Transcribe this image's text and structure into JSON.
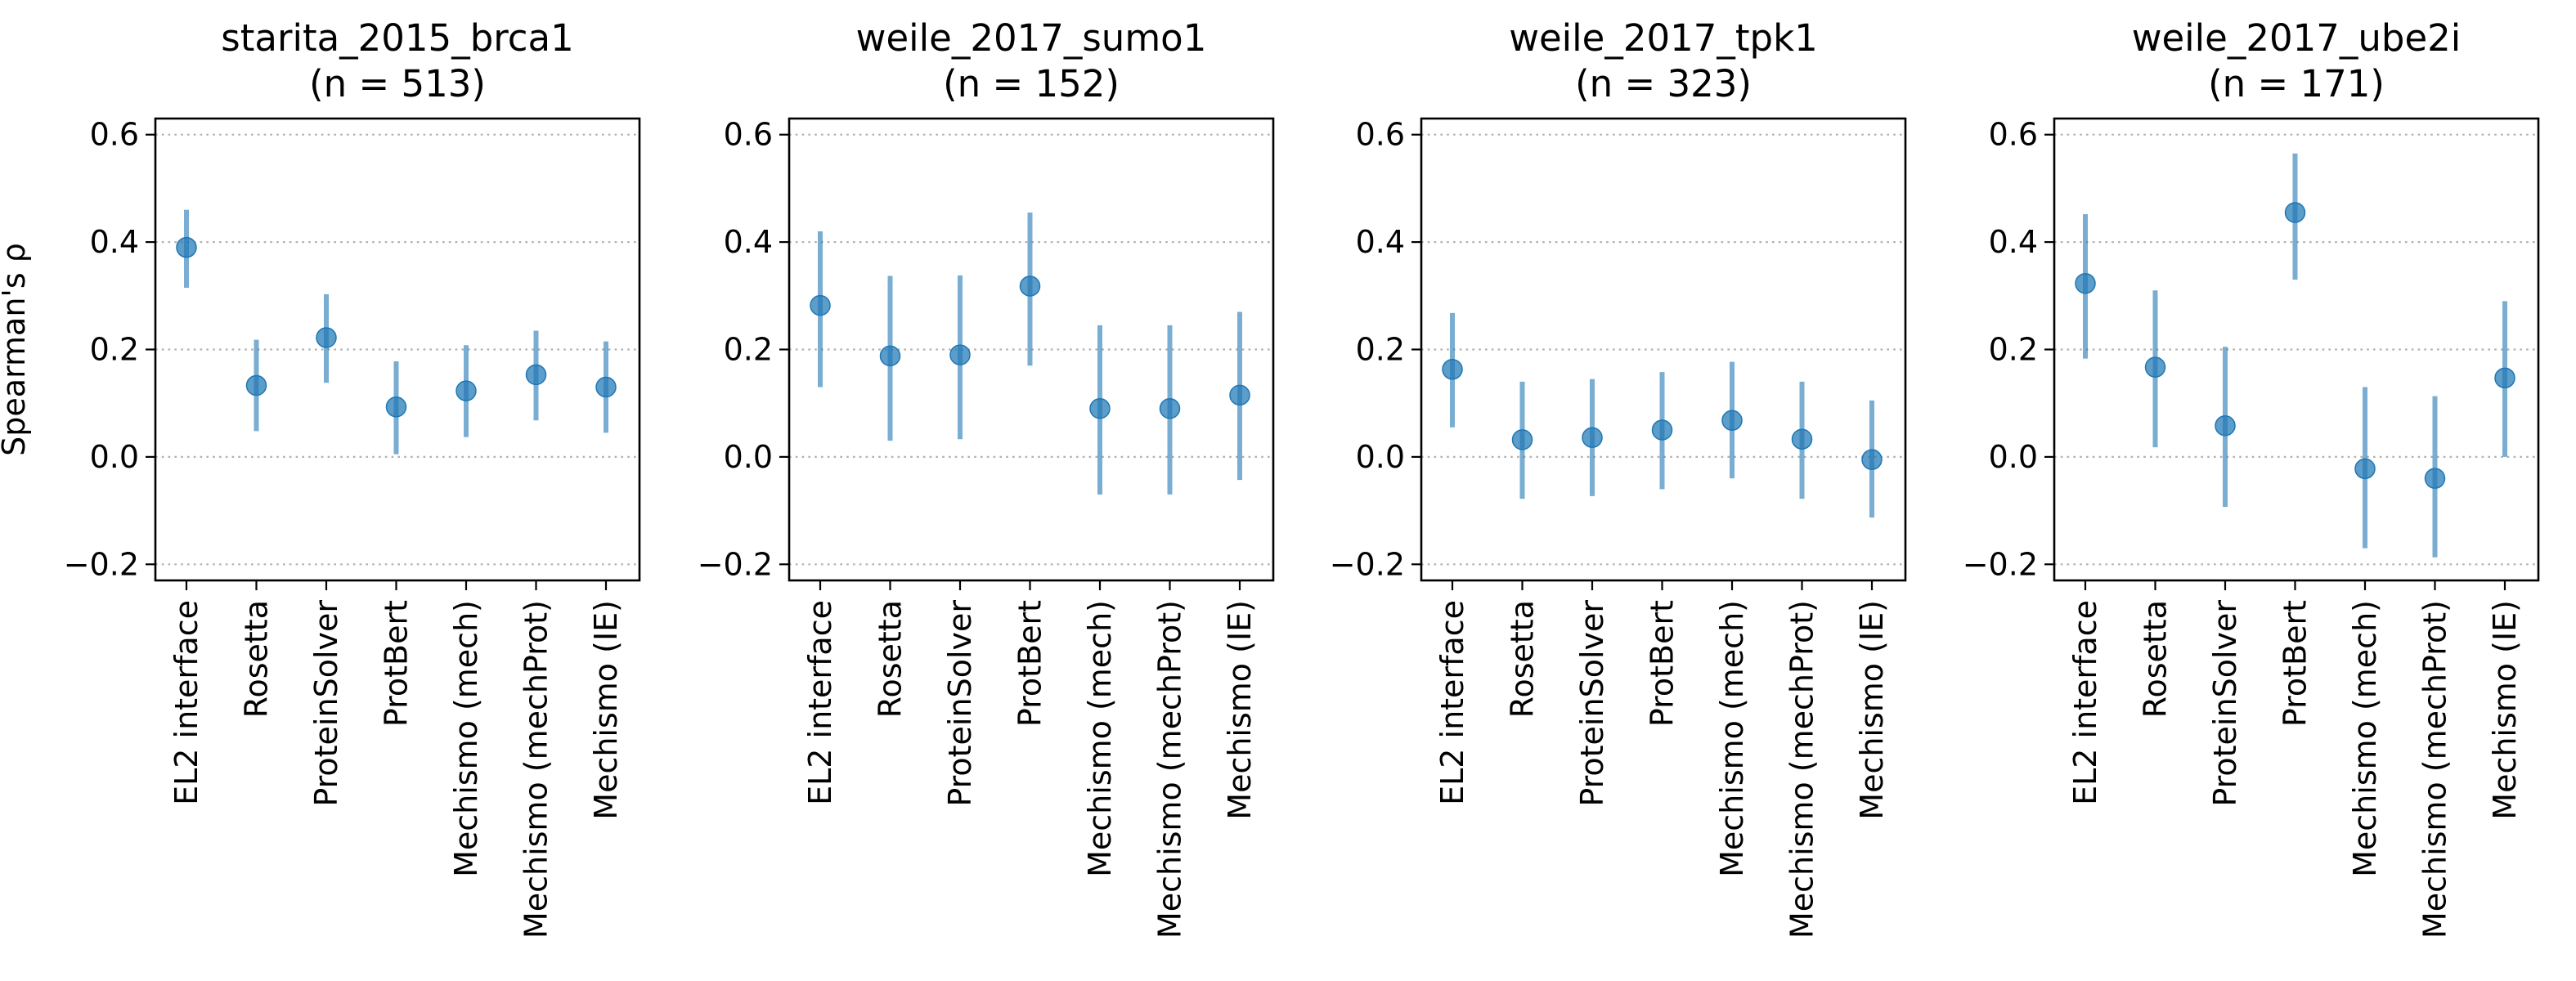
{
  "chart_data": [
    {
      "type": "scatter",
      "title": [
        "starita_2015_brca1",
        "(n = 513)"
      ],
      "ylabel": "Spearman's ρ",
      "ylim": [
        -0.23,
        0.63
      ],
      "yticks": [
        -0.2,
        0.0,
        0.2,
        0.4,
        0.6
      ],
      "ytick_labels": [
        "−0.2",
        "0.0",
        "0.2",
        "0.4",
        "0.6"
      ],
      "grid": true,
      "categories": [
        "EL2 interface",
        "Rosetta",
        "ProteinSolver",
        "ProtBert",
        "Mechismo (mech)",
        "Mechismo (mechProt)",
        "Mechismo (IE)"
      ],
      "values": [
        0.39,
        0.133,
        0.222,
        0.093,
        0.123,
        0.153,
        0.13
      ],
      "ci_low": [
        0.315,
        0.048,
        0.138,
        0.005,
        0.037,
        0.068,
        0.045
      ],
      "ci_high": [
        0.46,
        0.218,
        0.303,
        0.178,
        0.208,
        0.235,
        0.215
      ]
    },
    {
      "type": "scatter",
      "title": [
        "weile_2017_sumo1",
        "(n = 152)"
      ],
      "ylabel": "",
      "ylim": [
        -0.23,
        0.63
      ],
      "yticks": [
        -0.2,
        0.0,
        0.2,
        0.4,
        0.6
      ],
      "ytick_labels": [
        "−0.2",
        "0.0",
        "0.2",
        "0.4",
        "0.6"
      ],
      "grid": true,
      "categories": [
        "EL2 interface",
        "Rosetta",
        "ProteinSolver",
        "ProtBert",
        "Mechismo (mech)",
        "Mechismo (mechProt)",
        "Mechismo (IE)"
      ],
      "values": [
        0.282,
        0.188,
        0.19,
        0.318,
        0.09,
        0.09,
        0.115
      ],
      "ci_low": [
        0.13,
        0.03,
        0.033,
        0.17,
        -0.07,
        -0.07,
        -0.043
      ],
      "ci_high": [
        0.42,
        0.337,
        0.338,
        0.455,
        0.245,
        0.245,
        0.27
      ]
    },
    {
      "type": "scatter",
      "title": [
        "weile_2017_tpk1",
        "(n = 323)"
      ],
      "ylabel": "",
      "ylim": [
        -0.23,
        0.63
      ],
      "yticks": [
        -0.2,
        0.0,
        0.2,
        0.4,
        0.6
      ],
      "ytick_labels": [
        "−0.2",
        "0.0",
        "0.2",
        "0.4",
        "0.6"
      ],
      "grid": true,
      "categories": [
        "EL2 interface",
        "Rosetta",
        "ProteinSolver",
        "ProtBert",
        "Mechismo (mech)",
        "Mechismo (mechProt)",
        "Mechismo (IE)"
      ],
      "values": [
        0.163,
        0.032,
        0.036,
        0.05,
        0.068,
        0.033,
        -0.005
      ],
      "ci_low": [
        0.055,
        -0.078,
        -0.073,
        -0.06,
        -0.04,
        -0.078,
        -0.113
      ],
      "ci_high": [
        0.268,
        0.14,
        0.145,
        0.158,
        0.177,
        0.14,
        0.105
      ]
    },
    {
      "type": "scatter",
      "title": [
        "weile_2017_ube2i",
        "(n = 171)"
      ],
      "ylabel": "",
      "ylim": [
        -0.23,
        0.63
      ],
      "yticks": [
        -0.2,
        0.0,
        0.2,
        0.4,
        0.6
      ],
      "ytick_labels": [
        "−0.2",
        "0.0",
        "0.2",
        "0.4",
        "0.6"
      ],
      "grid": true,
      "categories": [
        "EL2 interface",
        "Rosetta",
        "ProteinSolver",
        "ProtBert",
        "Mechismo (mech)",
        "Mechismo (mechProt)",
        "Mechismo (IE)"
      ],
      "values": [
        0.323,
        0.167,
        0.058,
        0.455,
        -0.022,
        -0.04,
        0.147
      ],
      "ci_low": [
        0.183,
        0.018,
        -0.093,
        0.33,
        -0.17,
        -0.187,
        0.0
      ],
      "ci_high": [
        0.452,
        0.31,
        0.205,
        0.565,
        0.13,
        0.113,
        0.29
      ]
    }
  ],
  "colors": {
    "marker": "#1f77b4",
    "grid": "#b0b0b0",
    "frame": "#000000"
  }
}
